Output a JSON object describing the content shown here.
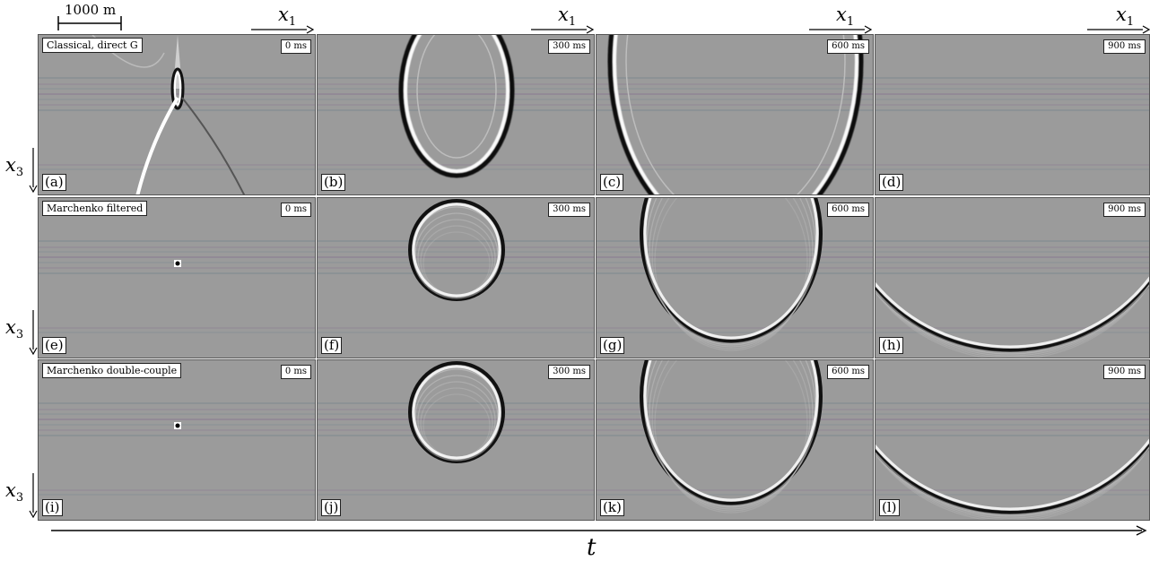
{
  "scale_bar": {
    "label": "1000 m"
  },
  "axes": {
    "x1": "x",
    "x1_sub": "1",
    "x3": "x",
    "x3_sub": "3",
    "t": "t"
  },
  "rows": [
    {
      "method": "Classical, direct G",
      "panels": [
        {
          "letter": "(a)",
          "time": "0 ms"
        },
        {
          "letter": "(b)",
          "time": "300 ms"
        },
        {
          "letter": "(c)",
          "time": "600 ms"
        },
        {
          "letter": "(d)",
          "time": "900 ms"
        }
      ]
    },
    {
      "method": "Marchenko filtered",
      "panels": [
        {
          "letter": "(e)",
          "time": "0 ms"
        },
        {
          "letter": "(f)",
          "time": "300 ms"
        },
        {
          "letter": "(g)",
          "time": "600 ms"
        },
        {
          "letter": "(h)",
          "time": "900 ms"
        }
      ]
    },
    {
      "method": "Marchenko double-couple",
      "panels": [
        {
          "letter": "(i)",
          "time": "0 ms"
        },
        {
          "letter": "(j)",
          "time": "300 ms"
        },
        {
          "letter": "(k)",
          "time": "600 ms"
        },
        {
          "letter": "(l)",
          "time": "900 ms"
        }
      ]
    }
  ]
}
